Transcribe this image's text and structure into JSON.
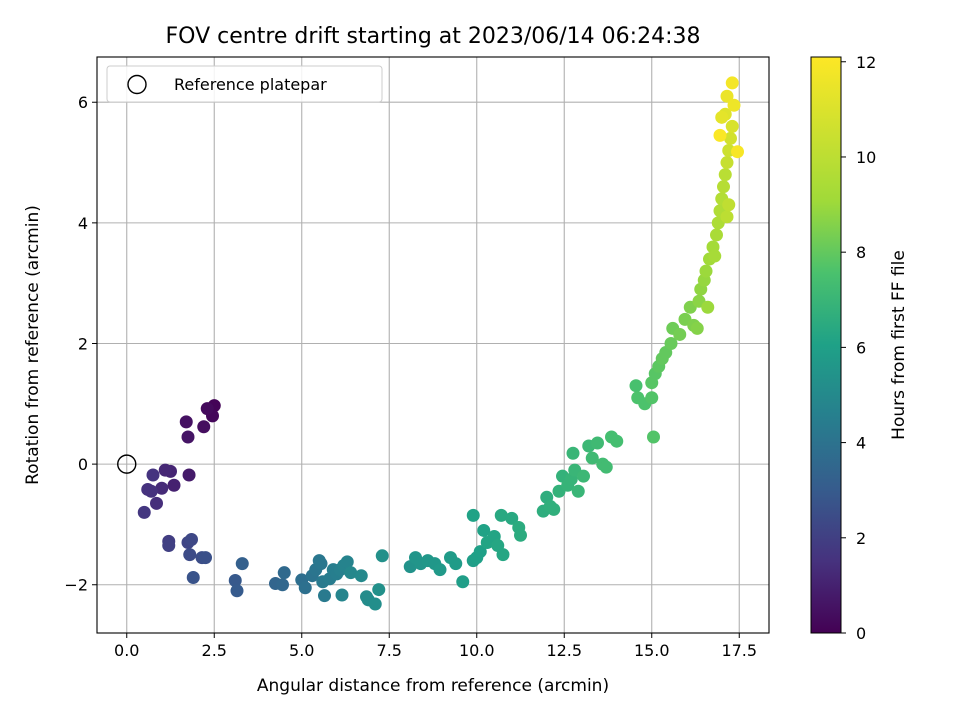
{
  "chart_data": {
    "type": "scatter",
    "title": "FOV centre drift starting at 2023/06/14 06:24:38",
    "xlabel": "Angular distance from reference (arcmin)",
    "ylabel": "Rotation from reference (arcmin)",
    "xlim": [
      -0.85,
      18.35
    ],
    "ylim": [
      -2.8,
      6.75
    ],
    "xticks": [
      0,
      2.5,
      5,
      7.5,
      10,
      12.5,
      15,
      17.5
    ],
    "xtick_labels": [
      "0.0",
      "2.5",
      "5.0",
      "7.5",
      "10.0",
      "12.5",
      "15.0",
      "17.5"
    ],
    "yticks": [
      -2,
      0,
      2,
      4,
      6
    ],
    "ytick_labels": [
      "−2",
      "0",
      "2",
      "4",
      "6"
    ],
    "grid": true,
    "legend": {
      "position": "top-left",
      "entries": [
        {
          "label": "Reference platepar",
          "marker": "open-circle"
        }
      ]
    },
    "reference_point": {
      "x": 0,
      "y": 0
    },
    "colorbar": {
      "label": "Hours from first FF file",
      "colormap": "viridis",
      "range": [
        0,
        12.1
      ],
      "ticks": [
        0,
        2,
        4,
        6,
        8,
        10,
        12
      ],
      "tick_labels": [
        "0",
        "2",
        "4",
        "6",
        "8",
        "10",
        "12"
      ]
    },
    "points": [
      [
        2.5,
        0.97,
        0.1
      ],
      [
        2.45,
        0.8,
        0.2
      ],
      [
        2.3,
        0.92,
        0.3
      ],
      [
        2.2,
        0.62,
        0.4
      ],
      [
        1.7,
        0.7,
        0.5
      ],
      [
        1.75,
        0.45,
        0.6
      ],
      [
        1.78,
        -0.18,
        0.8
      ],
      [
        1.35,
        -0.35,
        1.0
      ],
      [
        1.25,
        -0.12,
        1.1
      ],
      [
        1.1,
        -0.1,
        1.2
      ],
      [
        1.0,
        -0.4,
        1.3
      ],
      [
        0.85,
        -0.65,
        1.4
      ],
      [
        0.7,
        -0.45,
        1.5
      ],
      [
        0.6,
        -0.42,
        1.5
      ],
      [
        0.75,
        -0.18,
        1.6
      ],
      [
        0.5,
        -0.8,
        1.7
      ],
      [
        1.2,
        -1.28,
        1.9
      ],
      [
        1.2,
        -1.35,
        2.0
      ],
      [
        1.75,
        -1.3,
        2.2
      ],
      [
        1.85,
        -1.25,
        2.3
      ],
      [
        1.8,
        -1.5,
        2.4
      ],
      [
        2.15,
        -1.55,
        2.5
      ],
      [
        2.25,
        -1.55,
        2.6
      ],
      [
        1.9,
        -1.88,
        2.7
      ],
      [
        3.1,
        -1.93,
        2.9
      ],
      [
        3.15,
        -2.1,
        3.0
      ],
      [
        3.3,
        -1.65,
        3.2
      ],
      [
        4.25,
        -1.98,
        3.4
      ],
      [
        4.45,
        -2.0,
        3.5
      ],
      [
        4.5,
        -1.8,
        3.6
      ],
      [
        5.0,
        -1.92,
        3.8
      ],
      [
        5.1,
        -2.05,
        3.9
      ],
      [
        5.3,
        -1.85,
        4.0
      ],
      [
        5.4,
        -1.75,
        4.1
      ],
      [
        5.5,
        -1.6,
        4.2
      ],
      [
        5.55,
        -1.65,
        4.2
      ],
      [
        5.6,
        -1.95,
        4.3
      ],
      [
        5.65,
        -2.18,
        4.3
      ],
      [
        5.8,
        -1.9,
        4.4
      ],
      [
        5.9,
        -1.75,
        4.5
      ],
      [
        6.0,
        -1.82,
        4.5
      ],
      [
        6.1,
        -1.75,
        4.6
      ],
      [
        6.2,
        -1.68,
        4.7
      ],
      [
        6.3,
        -1.62,
        4.7
      ],
      [
        6.15,
        -2.17,
        4.8
      ],
      [
        6.4,
        -1.8,
        4.9
      ],
      [
        6.7,
        -1.85,
        5.0
      ],
      [
        6.85,
        -2.2,
        5.1
      ],
      [
        6.9,
        -2.25,
        5.1
      ],
      [
        7.1,
        -2.32,
        5.2
      ],
      [
        7.2,
        -2.08,
        5.3
      ],
      [
        7.3,
        -1.52,
        5.3
      ],
      [
        8.1,
        -1.7,
        5.4
      ],
      [
        8.25,
        -1.55,
        5.5
      ],
      [
        8.4,
        -1.65,
        5.5
      ],
      [
        8.6,
        -1.6,
        5.6
      ],
      [
        8.8,
        -1.65,
        5.6
      ],
      [
        8.95,
        -1.75,
        5.7
      ],
      [
        9.25,
        -1.55,
        5.8
      ],
      [
        9.4,
        -1.65,
        5.8
      ],
      [
        9.6,
        -1.95,
        5.9
      ],
      [
        9.9,
        -1.6,
        5.9
      ],
      [
        10.0,
        -1.55,
        6.0
      ],
      [
        10.1,
        -1.45,
        6.0
      ],
      [
        9.9,
        -0.85,
        6.1
      ],
      [
        10.2,
        -1.1,
        6.1
      ],
      [
        10.3,
        -1.3,
        6.2
      ],
      [
        10.5,
        -1.2,
        6.2
      ],
      [
        10.6,
        -1.35,
        6.3
      ],
      [
        10.75,
        -1.5,
        6.3
      ],
      [
        10.7,
        -0.85,
        6.4
      ],
      [
        11.0,
        -0.9,
        6.4
      ],
      [
        11.2,
        -1.05,
        6.5
      ],
      [
        11.25,
        -1.18,
        6.5
      ],
      [
        11.9,
        -0.78,
        6.6
      ],
      [
        12.0,
        -0.55,
        6.6
      ],
      [
        12.1,
        -0.7,
        6.7
      ],
      [
        12.2,
        -0.75,
        6.7
      ],
      [
        12.35,
        -0.45,
        6.8
      ],
      [
        12.45,
        -0.2,
        6.8
      ],
      [
        12.6,
        -0.35,
        6.9
      ],
      [
        12.7,
        -0.25,
        6.9
      ],
      [
        12.8,
        -0.1,
        7.0
      ],
      [
        12.9,
        -0.45,
        7.0
      ],
      [
        12.75,
        0.18,
        7.0
      ],
      [
        13.05,
        -0.2,
        7.1
      ],
      [
        13.2,
        0.3,
        7.1
      ],
      [
        13.3,
        0.1,
        7.2
      ],
      [
        13.45,
        0.35,
        7.2
      ],
      [
        13.6,
        0.0,
        7.3
      ],
      [
        13.7,
        -0.05,
        7.3
      ],
      [
        13.85,
        0.45,
        7.4
      ],
      [
        14.0,
        0.38,
        7.4
      ],
      [
        14.55,
        1.3,
        7.5
      ],
      [
        14.6,
        1.1,
        7.6
      ],
      [
        14.8,
        1.0,
        7.6
      ],
      [
        15.0,
        1.1,
        7.7
      ],
      [
        15.05,
        0.45,
        7.7
      ],
      [
        15.0,
        1.35,
        7.8
      ],
      [
        15.1,
        1.5,
        7.8
      ],
      [
        15.2,
        1.62,
        7.9
      ],
      [
        15.3,
        1.75,
        8.0
      ],
      [
        15.4,
        1.85,
        8.0
      ],
      [
        15.55,
        2.0,
        8.1
      ],
      [
        15.6,
        2.25,
        8.2
      ],
      [
        15.8,
        2.15,
        8.3
      ],
      [
        15.95,
        2.4,
        8.4
      ],
      [
        16.1,
        2.6,
        8.5
      ],
      [
        16.2,
        2.3,
        8.5
      ],
      [
        16.3,
        2.25,
        8.6
      ],
      [
        16.35,
        2.7,
        8.7
      ],
      [
        16.4,
        2.9,
        8.8
      ],
      [
        16.5,
        3.05,
        8.9
      ],
      [
        16.55,
        3.2,
        9.0
      ],
      [
        16.6,
        2.6,
        9.0
      ],
      [
        16.65,
        3.4,
        9.1
      ],
      [
        16.75,
        3.6,
        9.2
      ],
      [
        16.8,
        3.45,
        9.3
      ],
      [
        16.85,
        3.8,
        9.4
      ],
      [
        16.9,
        4.0,
        9.5
      ],
      [
        16.95,
        4.2,
        9.6
      ],
      [
        17.0,
        4.4,
        9.7
      ],
      [
        17.05,
        4.6,
        9.8
      ],
      [
        17.1,
        4.8,
        9.9
      ],
      [
        17.15,
        4.1,
        10.0
      ],
      [
        17.2,
        4.3,
        10.1
      ],
      [
        17.15,
        5.0,
        10.3
      ],
      [
        17.2,
        5.2,
        10.5
      ],
      [
        17.25,
        5.4,
        10.7
      ],
      [
        17.3,
        5.6,
        10.9
      ],
      [
        17.1,
        5.8,
        11.1
      ],
      [
        17.0,
        5.75,
        11.3
      ],
      [
        17.15,
        6.1,
        11.5
      ],
      [
        17.35,
        5.95,
        11.6
      ],
      [
        17.3,
        6.32,
        11.8
      ],
      [
        17.45,
        5.18,
        11.9
      ],
      [
        16.95,
        5.45,
        12.0
      ]
    ]
  }
}
